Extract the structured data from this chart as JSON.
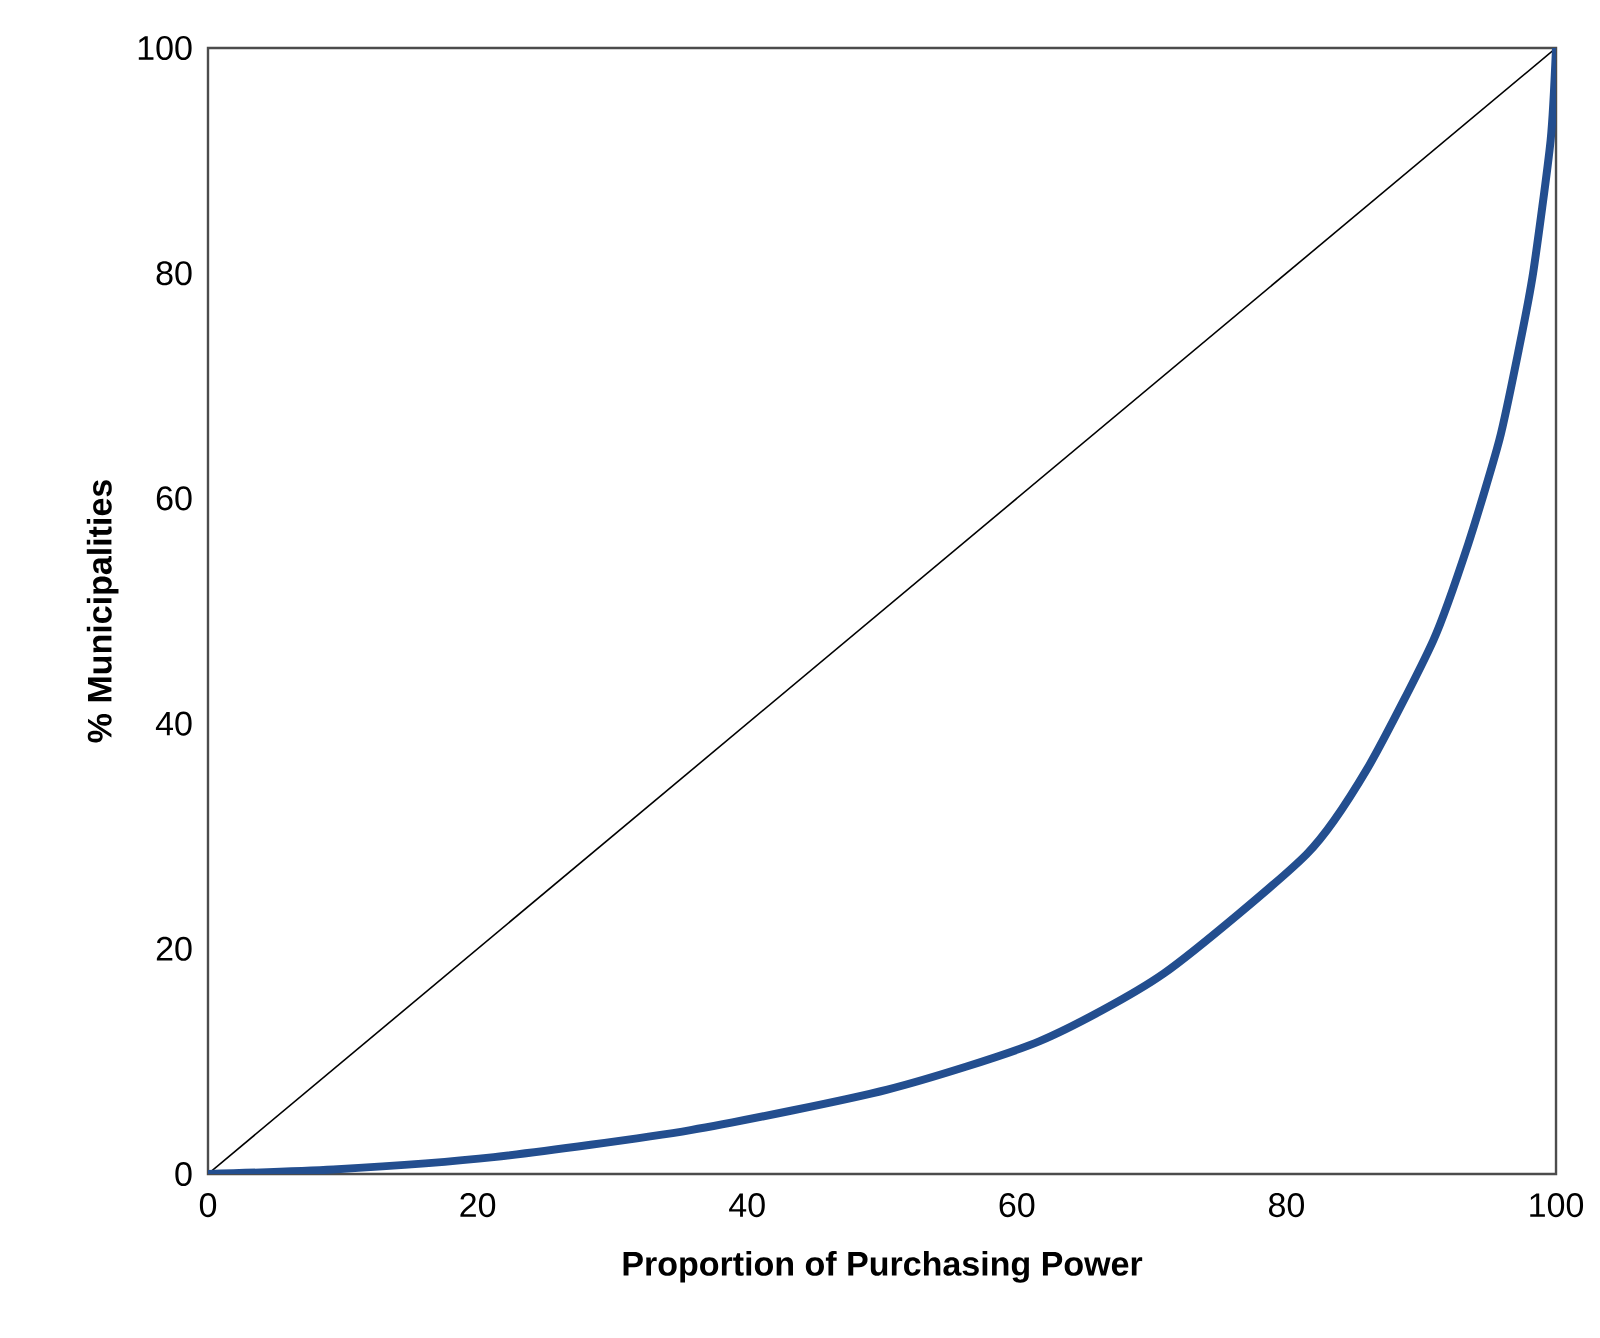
{
  "chart_data": {
    "type": "line",
    "xlabel": "Proportion of Purchasing Power",
    "ylabel": "% Municipalities",
    "xlim": [
      0,
      100
    ],
    "ylim": [
      0,
      100
    ],
    "xticks": [
      0,
      20,
      40,
      60,
      80,
      100
    ],
    "yticks": [
      0,
      20,
      40,
      60,
      80,
      100
    ],
    "grid": false,
    "marker": "none",
    "line_style": "solid",
    "series": [
      {
        "color": "#000000",
        "x": [
          0,
          100
        ],
        "values": [
          0,
          100
        ]
      },
      {
        "color": "#234e8f",
        "x": [
          0,
          9.3,
          21.2,
          35.8,
          50.4,
          61.7,
          70.9,
          81.5,
          86,
          90.9,
          93.5,
          95.8,
          97.2,
          98.3,
          99.6,
          100
        ],
        "values": [
          0,
          0.4,
          1.5,
          3.9,
          7.5,
          11.8,
          17.8,
          28.4,
          36,
          47.4,
          56,
          65.2,
          73,
          80,
          91.8,
          100
        ]
      }
    ]
  }
}
